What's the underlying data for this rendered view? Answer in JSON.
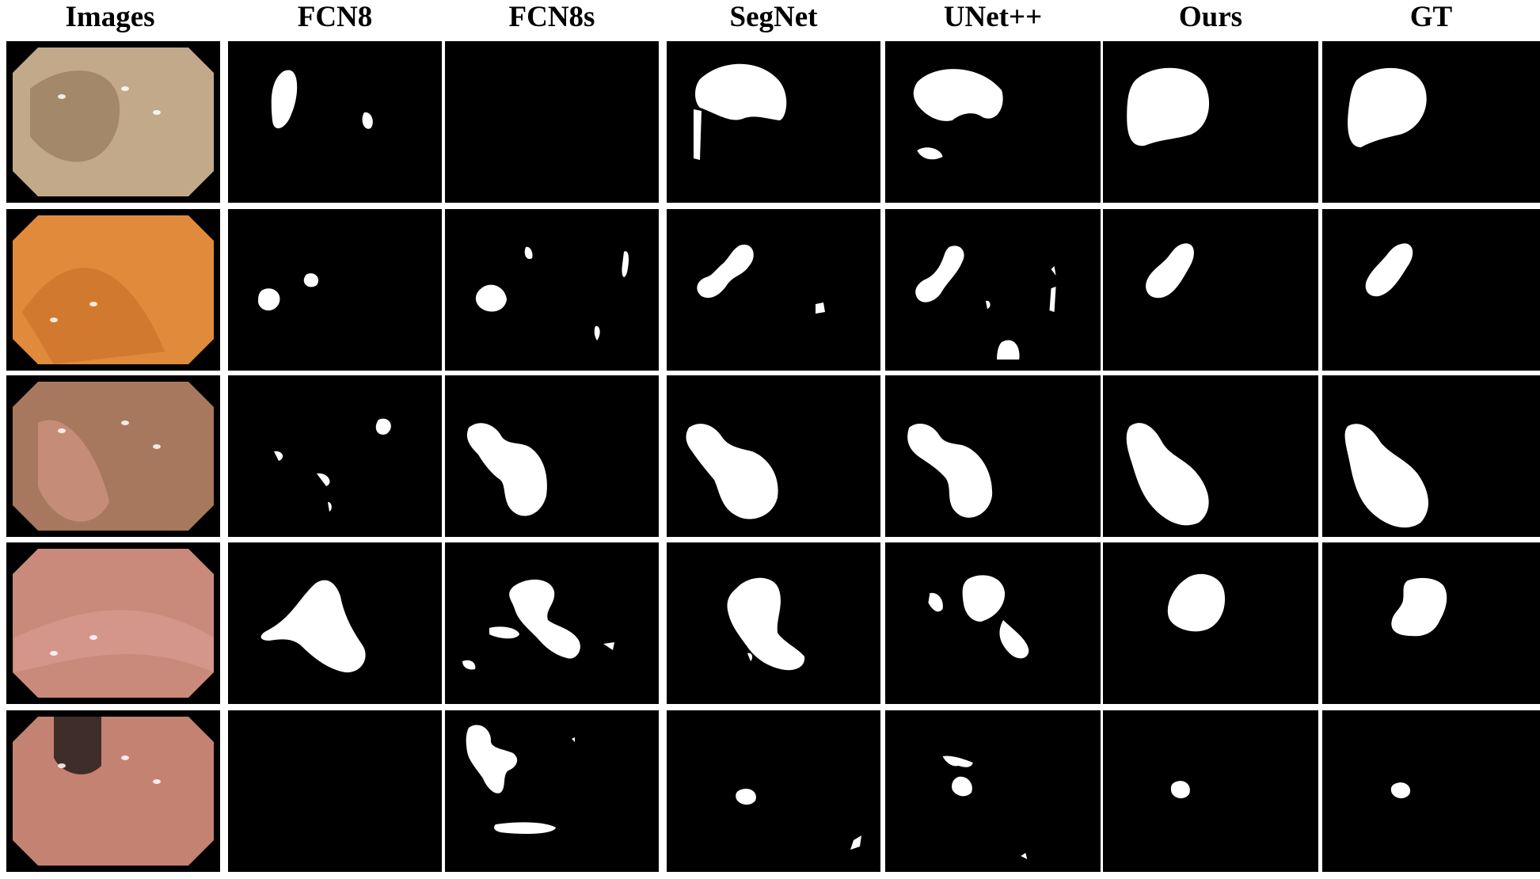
{
  "figure": {
    "columns": [
      "Images",
      "FCN8",
      "FCN8s",
      "SegNet",
      "UNet++",
      "Ours",
      "GT"
    ],
    "rows": 5,
    "colors": {
      "background": "#ffffff",
      "cell_background": "#000000",
      "mask_foreground": "#ffffff",
      "tissue_tones": [
        "#c2a98a",
        "#e08a3c",
        "#a8785e",
        "#c98a7c",
        "#c48272"
      ]
    }
  }
}
